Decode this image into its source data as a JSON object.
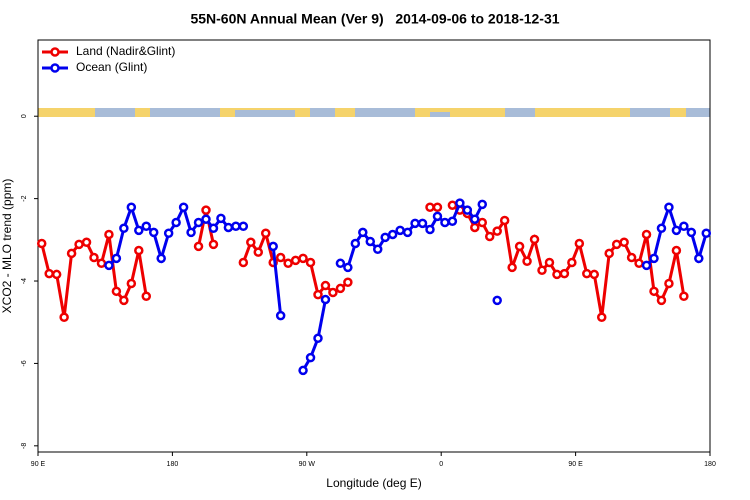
{
  "chart_data": {
    "type": "line",
    "title": "55N-60N Annual Mean (Ver 9)   2014-09-06 to 2018-12-31",
    "xlabel": "Longitude (deg E)",
    "ylabel": "XCO2 - MLO trend (ppm)",
    "xlim": [
      90,
      540
    ],
    "ylim": [
      -8.15,
      1.85
    ],
    "xticks": [
      {
        "value": 90,
        "label": "90 E"
      },
      180,
      {
        "value": 270,
        "label": "90 W"
      },
      {
        "value": 360,
        "label": "0"
      },
      {
        "value": 450,
        "label": "90 E"
      },
      {
        "value": 540,
        "label": "180"
      }
    ],
    "yticks": [
      0,
      -2,
      -4,
      -6,
      -8
    ],
    "legend": "top-left",
    "series": [
      {
        "name": "Land (Nadir&Glint)",
        "color": "#ee0000",
        "x": [
          92.5,
          97.5,
          102.5,
          107.5,
          112.5,
          117.5,
          122.5,
          127.5,
          132.5,
          137.5,
          142.5,
          147.5,
          152.5,
          157.5,
          162.5,
          167.5,
          197.5,
          202.5,
          207.5,
          212.5,
          227.5,
          232.5,
          237.5,
          242.5,
          247.5,
          252.5,
          257.5,
          262.5,
          267.5,
          272.5,
          277.5,
          282.5,
          287.5,
          292.5,
          297.5,
          302.5,
          352.5,
          357.5,
          362.5,
          367.5,
          372.5,
          377.5,
          382.5,
          387.5,
          392.5,
          397.5,
          402.5,
          407.5,
          412.5,
          417.5,
          422.5,
          427.5,
          432.5,
          437.5,
          442.5,
          447.5,
          452.5,
          457.5,
          462.5,
          467.5,
          472.5,
          477.5,
          482.5,
          487.5,
          492.5,
          497.5,
          502.5,
          507.5,
          512.5,
          517.5,
          522.5
        ],
        "values": [
          -3.09,
          -3.82,
          -3.84,
          -4.88,
          -3.33,
          -3.11,
          -3.06,
          -3.43,
          -3.57,
          -2.87,
          -4.25,
          -4.47,
          -4.06,
          -3.26,
          -4.37,
          null,
          -3.16,
          -2.28,
          -3.11,
          null,
          -3.55,
          -3.06,
          -3.3,
          -2.84,
          -3.55,
          -3.43,
          -3.57,
          -3.5,
          -3.45,
          -3.55,
          -4.33,
          -4.11,
          -4.28,
          -4.18,
          -4.03,
          null,
          -2.21,
          -2.21,
          null,
          -2.16,
          -2.28,
          -2.36,
          -2.7,
          -2.58,
          -2.92,
          -2.79,
          -2.53,
          -3.67,
          -3.16,
          -3.52,
          -2.99,
          -3.74,
          -3.55,
          -3.84,
          -3.82,
          -3.55,
          -3.09,
          -3.82,
          -3.84,
          -4.88,
          -3.33,
          -3.11,
          -3.06,
          -3.43,
          -3.57,
          -2.87,
          -4.25,
          -4.47,
          -4.06,
          -3.26,
          -4.37
        ]
      },
      {
        "name": "Ocean (Glint)",
        "color": "#0000ee",
        "x": [
          137.5,
          142.5,
          147.5,
          152.5,
          157.5,
          162.5,
          167.5,
          172.5,
          177.5,
          182.5,
          187.5,
          192.5,
          197.5,
          202.5,
          207.5,
          212.5,
          217.5,
          222.5,
          227.5,
          232.5,
          247.5,
          252.5,
          257.5,
          267.5,
          272.5,
          277.5,
          282.5,
          287.5,
          292.5,
          297.5,
          302.5,
          307.5,
          312.5,
          317.5,
          322.5,
          327.5,
          332.5,
          337.5,
          342.5,
          347.5,
          352.5,
          357.5,
          362.5,
          367.5,
          372.5,
          377.5,
          382.5,
          387.5,
          392.5,
          397.5,
          402.5,
          497.5,
          502.5,
          507.5,
          512.5,
          517.5,
          522.5,
          527.5,
          532.5,
          537.5
        ],
        "values": [
          -3.62,
          -3.45,
          -2.72,
          -2.21,
          -2.77,
          -2.67,
          -2.82,
          -3.45,
          -2.84,
          -2.58,
          -2.21,
          -2.82,
          -2.58,
          -2.5,
          -2.72,
          -2.48,
          -2.7,
          -2.67,
          -2.67,
          null,
          -3.16,
          -4.84,
          null,
          -6.17,
          -5.86,
          -5.39,
          -4.45,
          null,
          -3.57,
          -3.67,
          -3.09,
          -2.82,
          -3.04,
          -3.23,
          -2.94,
          -2.87,
          -2.77,
          -2.82,
          -2.6,
          -2.6,
          -2.75,
          -2.43,
          -2.58,
          -2.55,
          -2.11,
          -2.28,
          -2.5,
          -2.14,
          null,
          -4.47,
          null,
          -3.62,
          -3.45,
          -2.72,
          -2.21,
          -2.77,
          -2.67,
          -2.82,
          -3.45,
          -2.84
        ]
      }
    ]
  }
}
